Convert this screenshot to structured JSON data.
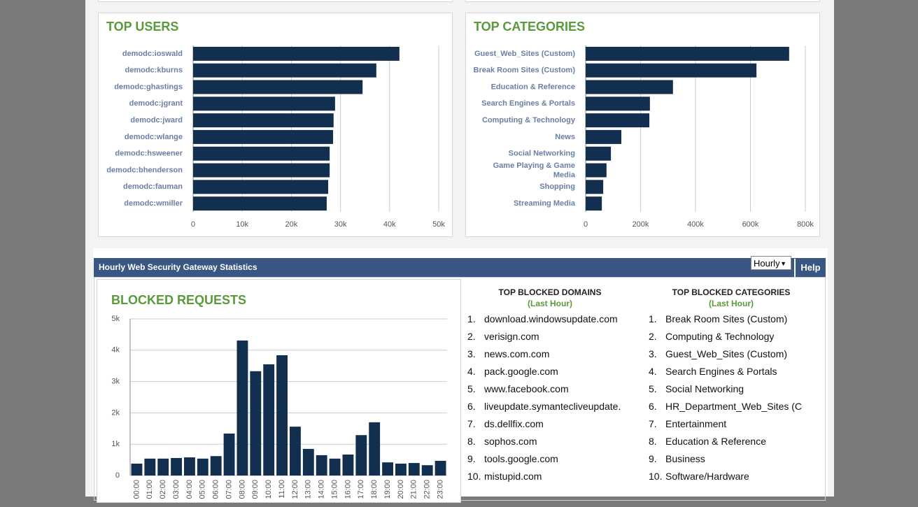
{
  "chart_data": [
    {
      "type": "hbar",
      "title": "TOP USERS",
      "categories": [
        "demodc:ioswald",
        "demodc:kburns",
        "demodc:ghastings",
        "demodc:jgrant",
        "demodc:jward",
        "demodc:wlange",
        "demodc:hsweener",
        "demodc:bhenderson",
        "demodc:fauman",
        "demodc:wmiller"
      ],
      "values": [
        42000,
        37300,
        34500,
        28900,
        28600,
        28500,
        27800,
        27800,
        27500,
        27200
      ],
      "color": "#132f50",
      "xlim": [
        0,
        50000
      ],
      "xticks": [
        0,
        {
          "value": 10000,
          "label": "10k"
        },
        {
          "value": 20000,
          "label": "20k"
        },
        {
          "value": 30000,
          "label": "30k"
        },
        {
          "value": 40000,
          "label": "40k"
        },
        {
          "value": 50000,
          "label": "50k"
        }
      ],
      "grid": true
    },
    {
      "type": "hbar",
      "title": "TOP CATEGORIES",
      "categories": [
        "Guest_Web_Sites (Custom)",
        "Break Room Sites (Custom)",
        "Education & Reference",
        "Search Engines & Portals",
        "Computing & Technology",
        "News",
        "Social Networking",
        "Game Playing & Game Media",
        "Shopping",
        "Streaming Media"
      ],
      "values": [
        741000,
        622000,
        318000,
        234000,
        232000,
        130000,
        92000,
        76000,
        64000,
        59000
      ],
      "color": "#132f50",
      "xlim": [
        0,
        800000
      ],
      "xticks": [
        0,
        {
          "value": 200000,
          "label": "200k"
        },
        {
          "value": 400000,
          "label": "400k"
        },
        {
          "value": 600000,
          "label": "600k"
        },
        {
          "value": 800000,
          "label": "800k"
        }
      ],
      "grid": true
    },
    {
      "type": "bar",
      "title": "BLOCKED REQUESTS",
      "categories": [
        "00:00",
        "01:00",
        "02:00",
        "03:00",
        "04:00",
        "05:00",
        "06:00",
        "07:00",
        "08:00",
        "09:00",
        "10:00",
        "11:00",
        "12:00",
        "13:00",
        "14:00",
        "15:00",
        "16:00",
        "17:00",
        "18:00",
        "19:00",
        "20:00",
        "21:00",
        "22:00",
        "23:00"
      ],
      "values": [
        380,
        540,
        540,
        560,
        580,
        540,
        620,
        1340,
        4310,
        3330,
        3550,
        3840,
        1560,
        850,
        650,
        540,
        670,
        1290,
        1700,
        420,
        380,
        400,
        330,
        470
      ],
      "color": "#132f50",
      "ylim": [
        0,
        5000
      ],
      "yticks": [
        0,
        {
          "value": 1000,
          "label": "1k"
        },
        {
          "value": 2000,
          "label": "2k"
        },
        {
          "value": 3000,
          "label": "3k"
        },
        {
          "value": 4000,
          "label": "4k"
        },
        {
          "value": 5000,
          "label": "5k"
        }
      ],
      "grid": true
    }
  ],
  "panel": {
    "title": "Hourly Web Security Gateway Statistics",
    "period": "Hourly",
    "help": "Help"
  },
  "top_blocked_domains": {
    "title": "TOP BLOCKED DOMAINS",
    "subtitle": "(Last Hour)",
    "items": [
      {
        "num": "1.",
        "text": "download.windowsupdate.com"
      },
      {
        "num": "2.",
        "text": "verisign.com"
      },
      {
        "num": "3.",
        "text": "news.com.com"
      },
      {
        "num": "4.",
        "text": "pack.google.com"
      },
      {
        "num": "5.",
        "text": "www.facebook.com"
      },
      {
        "num": "6.",
        "text": "liveupdate.symantecliveupdate.com"
      },
      {
        "num": "7.",
        "text": "ds.dellfix.com"
      },
      {
        "num": "8.",
        "text": "sophos.com"
      },
      {
        "num": "9.",
        "text": "tools.google.com"
      },
      {
        "num": "10.",
        "text": "mistupid.com"
      }
    ]
  },
  "top_blocked_categories": {
    "title": "TOP BLOCKED CATEGORIES",
    "subtitle": "(Last Hour)",
    "items": [
      {
        "num": "1.",
        "text": "Break Room Sites (Custom)"
      },
      {
        "num": "2.",
        "text": "Computing & Technology"
      },
      {
        "num": "3.",
        "text": "Guest_Web_Sites (Custom)"
      },
      {
        "num": "4.",
        "text": "Search Engines & Portals"
      },
      {
        "num": "5.",
        "text": "Social Networking"
      },
      {
        "num": "6.",
        "text": "HR_Department_Web_Sites (Custom)"
      },
      {
        "num": "7.",
        "text": "Entertainment"
      },
      {
        "num": "8.",
        "text": "Education & Reference"
      },
      {
        "num": "9.",
        "text": "Business"
      },
      {
        "num": "10.",
        "text": "Software/Hardware"
      }
    ]
  }
}
